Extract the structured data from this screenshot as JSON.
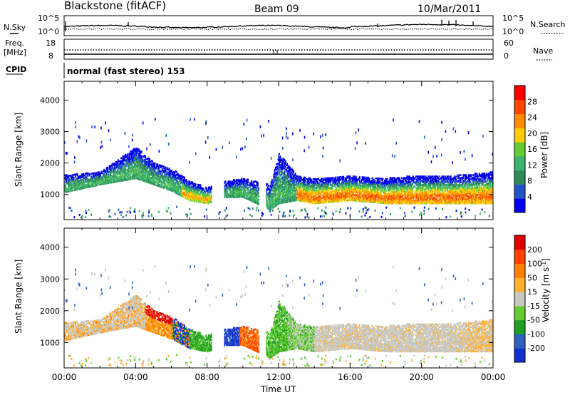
{
  "header": {
    "station": "Blackstone (fitACF)",
    "beam": "Beam 09",
    "date": "10/Mar/2011"
  },
  "noise_panel": {
    "left_label": "N.Sky",
    "right_label": "N.Search",
    "tick_top": "10^5",
    "tick_bottom": "10^0"
  },
  "freq_panel": {
    "left_label_1": "Freq.",
    "left_label_2": "[MHz]",
    "right_label": "Nave",
    "left_ticks": [
      "18",
      "8"
    ],
    "right_ticks": [
      "60",
      "0"
    ]
  },
  "cpid": {
    "label": "CPID",
    "value": "normal (fast stereo) 153"
  },
  "colors": {
    "power_scale": [
      "#0000ee",
      "#2255cc",
      "#2e8b57",
      "#3cb371",
      "#66cc33",
      "#ffcc00",
      "#ff8c00",
      "#ff4500",
      "#ff0000"
    ],
    "velocity_scale": [
      "#1030d0",
      "#3060c0",
      "#20a020",
      "#66cc33",
      "#c8c8c0",
      "#ffb030",
      "#ff8000",
      "#ff4000",
      "#e00000"
    ],
    "ground_scatter": "#aaaaaa"
  },
  "chart_data": [
    {
      "type": "heatmap",
      "panel": "power",
      "ylabel": "Slant Range [km]",
      "ylim": [
        200,
        4600
      ],
      "y_ticks": [
        1000,
        2000,
        3000,
        4000
      ],
      "xlim_hours": [
        0,
        24
      ],
      "colorbar": {
        "label": "Power [dB]",
        "range": [
          0,
          32
        ],
        "ticks": [
          "28",
          "24",
          "20",
          "16",
          "12",
          "8",
          "4"
        ]
      },
      "echo_band": [
        {
          "t": 0,
          "r_low": 1050,
          "r_high": 1600
        },
        {
          "t": 2,
          "r_low": 1300,
          "r_high": 1700
        },
        {
          "t": 4,
          "r_low": 1500,
          "r_high": 2500
        },
        {
          "t": 5,
          "r_low": 1300,
          "r_high": 2000
        },
        {
          "t": 6,
          "r_low": 1100,
          "r_high": 1800
        },
        {
          "t": 7,
          "r_low": 800,
          "r_high": 1400
        },
        {
          "t": 8,
          "r_low": 700,
          "r_high": 1200
        },
        {
          "t": 9,
          "r_low": 900,
          "r_high": 1400
        },
        {
          "t": 10,
          "r_low": 900,
          "r_high": 1500
        },
        {
          "t": 11.5,
          "r_low": 500,
          "r_high": 1300
        },
        {
          "t": 12,
          "r_low": 700,
          "r_high": 2300
        },
        {
          "t": 13,
          "r_low": 800,
          "r_high": 1600
        },
        {
          "t": 14,
          "r_low": 700,
          "r_high": 1500
        },
        {
          "t": 16,
          "r_low": 800,
          "r_high": 1600
        },
        {
          "t": 18,
          "r_low": 700,
          "r_high": 1500
        },
        {
          "t": 20,
          "r_low": 700,
          "r_high": 1600
        },
        {
          "t": 22,
          "r_low": 700,
          "r_high": 1600
        },
        {
          "t": 24,
          "r_low": 700,
          "r_high": 1700
        }
      ]
    },
    {
      "type": "heatmap",
      "panel": "velocity",
      "ylabel": "Slant Range [km]",
      "ylim": [
        200,
        4600
      ],
      "y_ticks": [
        1000,
        2000,
        3000,
        4000
      ],
      "xlim_hours": [
        0,
        24
      ],
      "xlabel": "Time UT",
      "x_ticks": [
        "00:00",
        "04:00",
        "08:00",
        "12:00",
        "16:00",
        "20:00",
        "00:00"
      ],
      "colorbar": {
        "label": "Velocity [m s^-1]",
        "ticks": [
          "200",
          "100",
          "50",
          "15",
          "-15",
          "-50",
          "-100",
          "-200"
        ]
      }
    }
  ]
}
